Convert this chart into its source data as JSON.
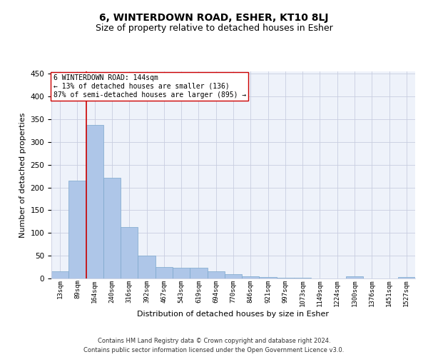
{
  "title": "6, WINTERDOWN ROAD, ESHER, KT10 8LJ",
  "subtitle": "Size of property relative to detached houses in Esher",
  "xlabel": "Distribution of detached houses by size in Esher",
  "ylabel": "Number of detached properties",
  "categories": [
    "13sqm",
    "89sqm",
    "164sqm",
    "240sqm",
    "316sqm",
    "392sqm",
    "467sqm",
    "543sqm",
    "619sqm",
    "694sqm",
    "770sqm",
    "846sqm",
    "921sqm",
    "997sqm",
    "1073sqm",
    "1149sqm",
    "1224sqm",
    "1300sqm",
    "1376sqm",
    "1451sqm",
    "1527sqm"
  ],
  "values": [
    15,
    215,
    338,
    222,
    113,
    50,
    25,
    24,
    23,
    16,
    9,
    5,
    3,
    1,
    1,
    0,
    0,
    4,
    0,
    0,
    3
  ],
  "bar_color": "#aec6e8",
  "bar_edge_color": "#7ba7cc",
  "vline_color": "#cc0000",
  "vline_x": 1.5,
  "annotation_text": "6 WINTERDOWN ROAD: 144sqm\n← 13% of detached houses are smaller (136)\n87% of semi-detached houses are larger (895) →",
  "annotation_box_color": "#ffffff",
  "annotation_box_edge": "#cc0000",
  "footnote_line1": "Contains HM Land Registry data © Crown copyright and database right 2024.",
  "footnote_line2": "Contains public sector information licensed under the Open Government Licence v3.0.",
  "bg_color": "#eef2fa",
  "grid_color": "#c8cde0",
  "ylim": [
    0,
    455
  ],
  "yticks": [
    0,
    50,
    100,
    150,
    200,
    250,
    300,
    350,
    400,
    450
  ],
  "title_fontsize": 10,
  "subtitle_fontsize": 9,
  "footnote_fontsize": 6,
  "ylabel_fontsize": 8,
  "xlabel_fontsize": 8
}
